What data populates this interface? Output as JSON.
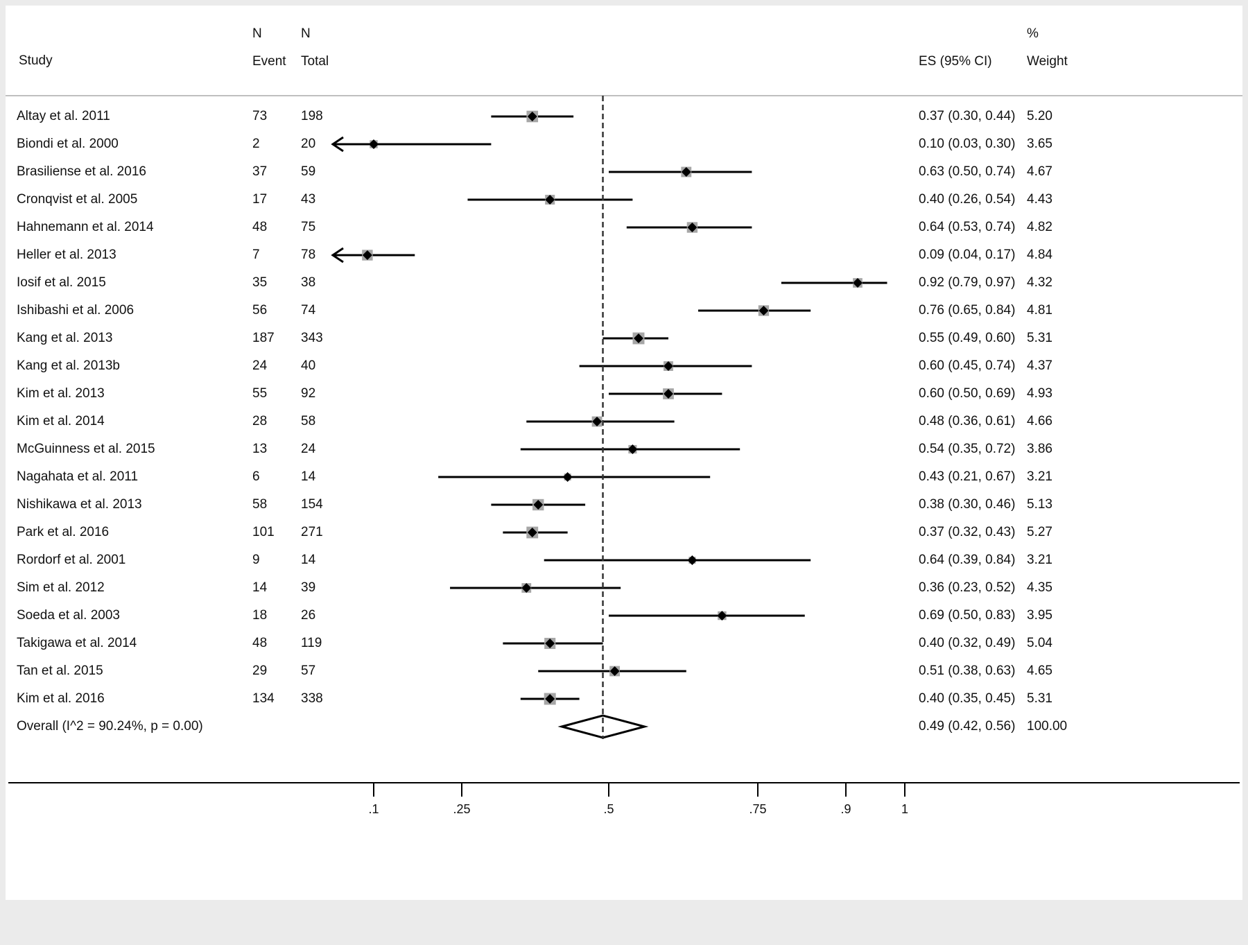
{
  "headers": {
    "study": "Study",
    "n_event_top": "N",
    "n_event_bottom": "Event",
    "n_total_top": "N",
    "n_total_bottom": "Total",
    "es": "ES (95% CI)",
    "weight_top": "%",
    "weight_bottom": "Weight"
  },
  "colors": {
    "box": "#a6a6a6",
    "marker": "#000000",
    "line": "#000000",
    "reference": "#333333"
  },
  "chart_data": {
    "type": "forest",
    "reference_line": 0.49,
    "x_ticks": [
      {
        "value": 0.1,
        "label": ".1"
      },
      {
        "value": 0.25,
        "label": ".25"
      },
      {
        "value": 0.5,
        "label": ".5"
      },
      {
        "value": 0.75,
        "label": ".75"
      },
      {
        "value": 0.9,
        "label": ".9"
      },
      {
        "value": 1.0,
        "label": "1"
      }
    ],
    "studies": [
      {
        "name": "Altay et al. 2011",
        "event": "73",
        "total": "198",
        "es": 0.37,
        "lo": 0.3,
        "hi": 0.44,
        "es_text": "0.37 (0.30, 0.44)",
        "weight": 5.2,
        "weight_text": "5.20"
      },
      {
        "name": "Biondi et al. 2000",
        "event": "2",
        "total": "20",
        "es": 0.1,
        "lo": 0.03,
        "hi": 0.3,
        "es_text": "0.10 (0.03, 0.30)",
        "weight": 3.65,
        "weight_text": "3.65"
      },
      {
        "name": "Brasiliense et al. 2016",
        "event": "37",
        "total": "59",
        "es": 0.63,
        "lo": 0.5,
        "hi": 0.74,
        "es_text": "0.63 (0.50, 0.74)",
        "weight": 4.67,
        "weight_text": "4.67"
      },
      {
        "name": "Cronqvist et al. 2005",
        "event": "17",
        "total": "43",
        "es": 0.4,
        "lo": 0.26,
        "hi": 0.54,
        "es_text": "0.40 (0.26, 0.54)",
        "weight": 4.43,
        "weight_text": "4.43"
      },
      {
        "name": "Hahnemann et al. 2014",
        "event": "48",
        "total": "75",
        "es": 0.64,
        "lo": 0.53,
        "hi": 0.74,
        "es_text": "0.64 (0.53, 0.74)",
        "weight": 4.82,
        "weight_text": "4.82"
      },
      {
        "name": "Heller et al. 2013",
        "event": "7",
        "total": "78",
        "es": 0.09,
        "lo": 0.04,
        "hi": 0.17,
        "es_text": "0.09 (0.04, 0.17)",
        "weight": 4.84,
        "weight_text": "4.84"
      },
      {
        "name": "Iosif et al. 2015",
        "event": "35",
        "total": "38",
        "es": 0.92,
        "lo": 0.79,
        "hi": 0.97,
        "es_text": "0.92 (0.79, 0.97)",
        "weight": 4.32,
        "weight_text": "4.32"
      },
      {
        "name": "Ishibashi et al. 2006",
        "event": "56",
        "total": "74",
        "es": 0.76,
        "lo": 0.65,
        "hi": 0.84,
        "es_text": "0.76 (0.65, 0.84)",
        "weight": 4.81,
        "weight_text": "4.81"
      },
      {
        "name": "Kang et al. 2013",
        "event": "187",
        "total": "343",
        "es": 0.55,
        "lo": 0.49,
        "hi": 0.6,
        "es_text": "0.55 (0.49, 0.60)",
        "weight": 5.31,
        "weight_text": "5.31"
      },
      {
        "name": "Kang et al. 2013b",
        "event": "24",
        "total": "40",
        "es": 0.6,
        "lo": 0.45,
        "hi": 0.74,
        "es_text": "0.60 (0.45, 0.74)",
        "weight": 4.37,
        "weight_text": "4.37"
      },
      {
        "name": "Kim et al. 2013",
        "event": "55",
        "total": "92",
        "es": 0.6,
        "lo": 0.5,
        "hi": 0.69,
        "es_text": "0.60 (0.50, 0.69)",
        "weight": 4.93,
        "weight_text": "4.93"
      },
      {
        "name": "Kim et al. 2014",
        "event": "28",
        "total": "58",
        "es": 0.48,
        "lo": 0.36,
        "hi": 0.61,
        "es_text": "0.48 (0.36, 0.61)",
        "weight": 4.66,
        "weight_text": "4.66"
      },
      {
        "name": "McGuinness et al. 2015",
        "event": "13",
        "total": "24",
        "es": 0.54,
        "lo": 0.35,
        "hi": 0.72,
        "es_text": "0.54 (0.35, 0.72)",
        "weight": 3.86,
        "weight_text": "3.86"
      },
      {
        "name": "Nagahata et al. 2011",
        "event": "6",
        "total": "14",
        "es": 0.43,
        "lo": 0.21,
        "hi": 0.67,
        "es_text": "0.43 (0.21, 0.67)",
        "weight": 3.21,
        "weight_text": "3.21"
      },
      {
        "name": "Nishikawa et al. 2013",
        "event": "58",
        "total": "154",
        "es": 0.38,
        "lo": 0.3,
        "hi": 0.46,
        "es_text": "0.38 (0.30, 0.46)",
        "weight": 5.13,
        "weight_text": "5.13"
      },
      {
        "name": "Park et al. 2016",
        "event": "101",
        "total": "271",
        "es": 0.37,
        "lo": 0.32,
        "hi": 0.43,
        "es_text": "0.37 (0.32, 0.43)",
        "weight": 5.27,
        "weight_text": "5.27"
      },
      {
        "name": "Rordorf et al. 2001",
        "event": "9",
        "total": "14",
        "es": 0.64,
        "lo": 0.39,
        "hi": 0.84,
        "es_text": "0.64 (0.39, 0.84)",
        "weight": 3.21,
        "weight_text": "3.21"
      },
      {
        "name": "Sim et al. 2012",
        "event": "14",
        "total": "39",
        "es": 0.36,
        "lo": 0.23,
        "hi": 0.52,
        "es_text": "0.36 (0.23, 0.52)",
        "weight": 4.35,
        "weight_text": "4.35"
      },
      {
        "name": "Soeda et al. 2003",
        "event": "18",
        "total": "26",
        "es": 0.69,
        "lo": 0.5,
        "hi": 0.83,
        "es_text": "0.69 (0.50, 0.83)",
        "weight": 3.95,
        "weight_text": "3.95"
      },
      {
        "name": "Takigawa et al. 2014",
        "event": "48",
        "total": "119",
        "es": 0.4,
        "lo": 0.32,
        "hi": 0.49,
        "es_text": "0.40 (0.32, 0.49)",
        "weight": 5.04,
        "weight_text": "5.04"
      },
      {
        "name": "Tan et al. 2015",
        "event": "29",
        "total": "57",
        "es": 0.51,
        "lo": 0.38,
        "hi": 0.63,
        "es_text": "0.51 (0.38, 0.63)",
        "weight": 4.65,
        "weight_text": "4.65"
      },
      {
        "name": "Kim et al. 2016",
        "event": "134",
        "total": "338",
        "es": 0.4,
        "lo": 0.35,
        "hi": 0.45,
        "es_text": "0.40 (0.35, 0.45)",
        "weight": 5.31,
        "weight_text": "5.31"
      }
    ],
    "overall": {
      "label": "Overall  (I^2 = 90.24%, p = 0.00)",
      "es": 0.49,
      "lo": 0.42,
      "hi": 0.56,
      "es_text": "0.49 (0.42, 0.56)",
      "weight_text": "100.00"
    }
  }
}
